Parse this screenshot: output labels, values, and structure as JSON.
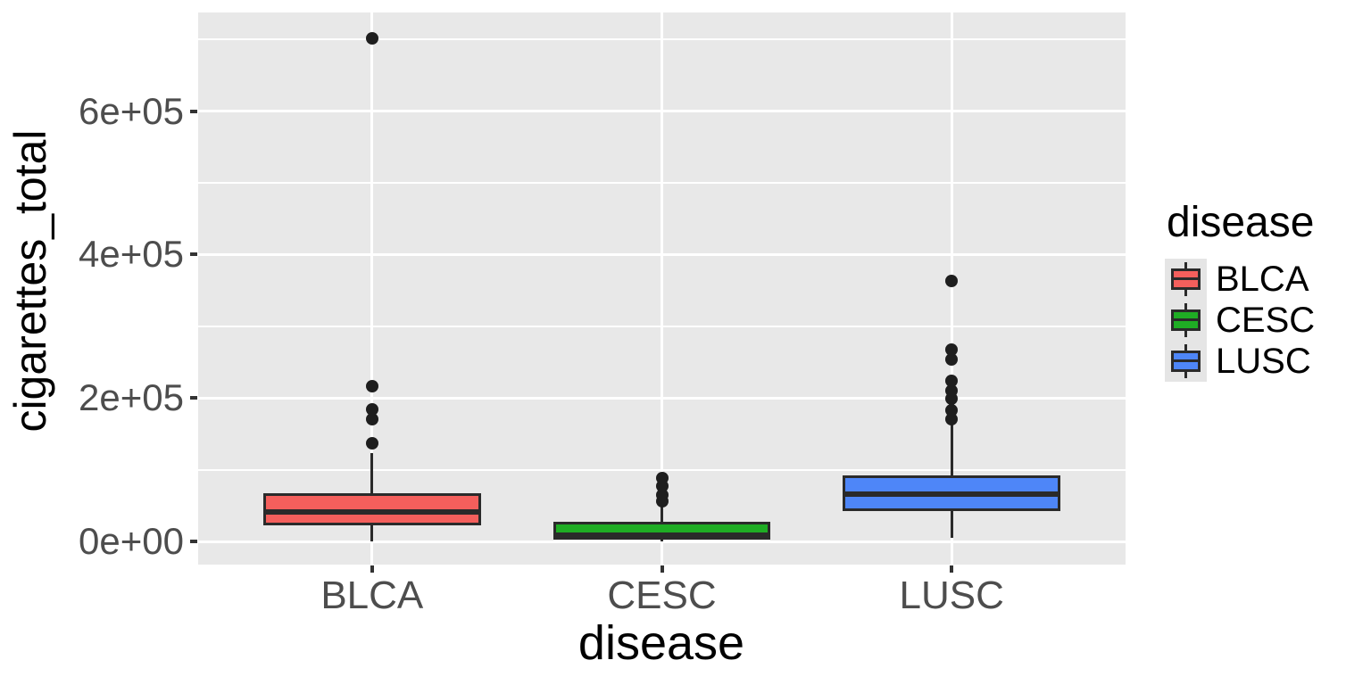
{
  "chart_data": {
    "type": "boxplot",
    "xlabel": "disease",
    "ylabel": "cigarettes_total",
    "legend_title": "disease",
    "legend_position": "right",
    "grid": "on",
    "categories": [
      "BLCA",
      "CESC",
      "LUSC"
    ],
    "y_major_ticks": [
      {
        "label": "0e+00",
        "value": 0
      },
      {
        "label": "2e+05",
        "value": 200000
      },
      {
        "label": "4e+05",
        "value": 400000
      },
      {
        "label": "6e+05",
        "value": 600000
      }
    ],
    "y_minor_values": [
      100000,
      300000,
      500000,
      700000
    ],
    "ylim": [
      -32300,
      737700
    ],
    "series": [
      {
        "name": "BLCA",
        "fill": "#f45f5c",
        "whisker_low": 0,
        "q1": 22000,
        "median": 41000,
        "q3": 67000,
        "whisker_high": 123000,
        "outliers": [
          137000,
          171000,
          184000,
          217000,
          702000
        ]
      },
      {
        "name": "CESC",
        "fill": "#1fad24",
        "whisker_low": 0,
        "q1": 3000,
        "median": 9000,
        "q3": 27000,
        "whisker_high": 48000,
        "outliers": [
          56000,
          65000,
          77000,
          88000
        ]
      },
      {
        "name": "LUSC",
        "fill": "#4e86f8",
        "whisker_low": 5000,
        "q1": 42000,
        "median": 66000,
        "q3": 92000,
        "whisker_high": 163000,
        "outliers": [
          170000,
          183000,
          199000,
          210000,
          224000,
          254000,
          267000,
          363000
        ]
      }
    ],
    "style": {
      "panel_bg": "#e8e8e8",
      "gridline_color": "#ffffff",
      "box_outline": "#2a2a2a",
      "outlier_color": "#1e1e1e",
      "tick_color": "#333333",
      "tick_label_color": "#4d4d4d"
    }
  }
}
